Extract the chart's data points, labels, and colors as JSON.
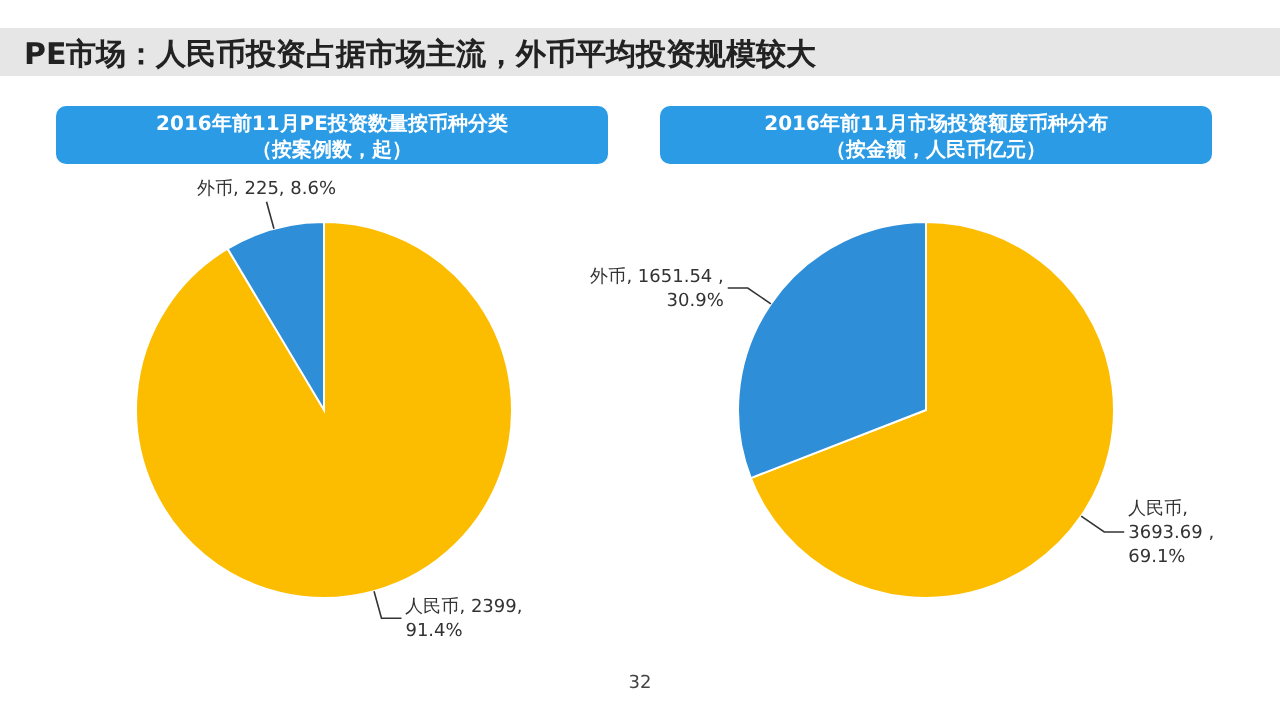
{
  "chart_data": [
    {
      "type": "other",
      "title": "PE市场：人民币投资占据市场主流，外币平均投资规模较大",
      "annotations": [
        "32"
      ]
    },
    {
      "type": "pie",
      "title": "2016年前11月PE投资数量按币种分类",
      "subtitle": "（按案例数，起）",
      "categories": [
        "人民币",
        "外币"
      ],
      "values": [
        2399,
        225
      ],
      "colors": [
        "#fcbd00",
        "#2f8ed8"
      ],
      "value_labels": [
        ", 2399,\n91.4%",
        ", 225, 8.6%"
      ]
    },
    {
      "type": "pie",
      "title": "2016年前11月市场投资额度币种分布",
      "subtitle": "（按金额，人民币亿元）",
      "categories": [
        "人民币",
        "外币"
      ],
      "values": [
        3693.69,
        1651.54
      ],
      "colors": [
        "#fcbd00",
        "#2f8ed8"
      ],
      "value_labels": [
        ",\n3693.69 ,\n69.1%",
        ", 1651.54 ,\n30.9%"
      ]
    }
  ]
}
